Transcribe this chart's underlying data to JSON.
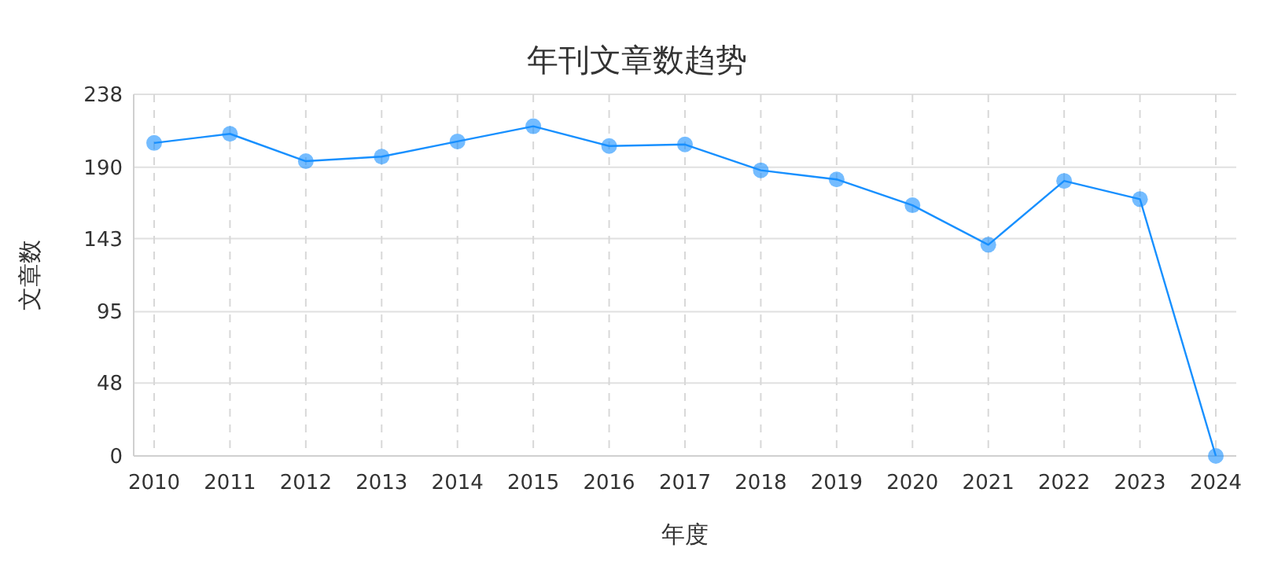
{
  "chart_data": {
    "type": "line",
    "title": "年刊文章数趋势",
    "xlabel": "年度",
    "ylabel": "文章数",
    "categories": [
      "2010",
      "2011",
      "2012",
      "2013",
      "2014",
      "2015",
      "2016",
      "2017",
      "2018",
      "2019",
      "2020",
      "2021",
      "2022",
      "2023",
      "2024"
    ],
    "series": [
      {
        "color": "#1890ff",
        "values": [
          206,
          212,
          194,
          197,
          207,
          217,
          204,
          205,
          188,
          182,
          165,
          139,
          181,
          169,
          0
        ]
      }
    ],
    "ylim": [
      0,
      238
    ],
    "yticks": [
      0,
      48,
      95,
      143,
      190,
      238
    ],
    "grid": true,
    "marker": "circle",
    "line_style": "solid"
  }
}
